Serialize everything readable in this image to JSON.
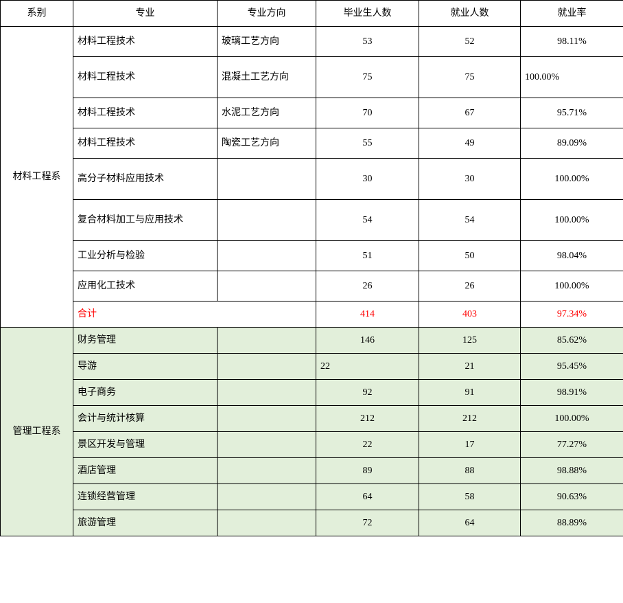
{
  "columns": {
    "dept": "系别",
    "major": "专业",
    "direction": "专业方向",
    "graduates": "毕业生人数",
    "employed": "就业人数",
    "rate": "就业率"
  },
  "dept1": {
    "name": "材料工程系",
    "rows": [
      {
        "major": "材料工程技术",
        "direction": "玻璃工艺方向",
        "grad": "53",
        "emp": "52",
        "rate": "98.11%",
        "tall": false,
        "rate_align": "center"
      },
      {
        "major": "材料工程技术",
        "direction": "混凝土工艺方向",
        "grad": "75",
        "emp": "75",
        "rate": "100.00%",
        "tall": true,
        "rate_align": "left"
      },
      {
        "major": "材料工程技术",
        "direction": "水泥工艺方向",
        "grad": "70",
        "emp": "67",
        "rate": "95.71%",
        "tall": false,
        "rate_align": "center"
      },
      {
        "major": "材料工程技术",
        "direction": "陶瓷工艺方向",
        "grad": "55",
        "emp": "49",
        "rate": "89.09%",
        "tall": false,
        "rate_align": "center"
      },
      {
        "major": "高分子材料应用技术",
        "direction": "",
        "grad": "30",
        "emp": "30",
        "rate": "100.00%",
        "tall": true,
        "rate_align": "center"
      },
      {
        "major": "复合材料加工与应用技术",
        "direction": "",
        "grad": "54",
        "emp": "54",
        "rate": "100.00%",
        "tall": true,
        "rate_align": "center"
      },
      {
        "major": "工业分析与检验",
        "direction": "",
        "grad": "51",
        "emp": "50",
        "rate": "98.04%",
        "tall": false,
        "rate_align": "center"
      },
      {
        "major": "应用化工技术",
        "direction": "",
        "grad": "26",
        "emp": "26",
        "rate": "100.00%",
        "tall": false,
        "rate_align": "center"
      }
    ],
    "total": {
      "label": "合计",
      "grad": "414",
      "emp": "403",
      "rate": "97.34%"
    }
  },
  "dept2": {
    "name": "管理工程系",
    "rows": [
      {
        "major": "财务管理",
        "direction": "",
        "grad": "146",
        "emp": "125",
        "rate": "85.62%",
        "grad_align": "center"
      },
      {
        "major": "导游",
        "direction": "",
        "grad": "22",
        "emp": "21",
        "rate": "95.45%",
        "grad_align": "left"
      },
      {
        "major": "电子商务",
        "direction": "",
        "grad": "92",
        "emp": "91",
        "rate": "98.91%",
        "grad_align": "center"
      },
      {
        "major": "会计与统计核算",
        "direction": "",
        "grad": "212",
        "emp": "212",
        "rate": "100.00%",
        "grad_align": "center"
      },
      {
        "major": "景区开发与管理",
        "direction": "",
        "grad": "22",
        "emp": "17",
        "rate": "77.27%",
        "grad_align": "center"
      },
      {
        "major": "酒店管理",
        "direction": "",
        "grad": "89",
        "emp": "88",
        "rate": "98.88%",
        "grad_align": "center"
      },
      {
        "major": "连锁经营管理",
        "direction": "",
        "grad": "64",
        "emp": "58",
        "rate": "90.63%",
        "grad_align": "center"
      },
      {
        "major": "旅游管理",
        "direction": "",
        "grad": "72",
        "emp": "64",
        "rate": "88.89%",
        "grad_align": "center"
      }
    ]
  },
  "colors": {
    "text_red": "#ff0000",
    "bg_green": "#e2efda",
    "border": "#000000",
    "bg": "#ffffff"
  }
}
